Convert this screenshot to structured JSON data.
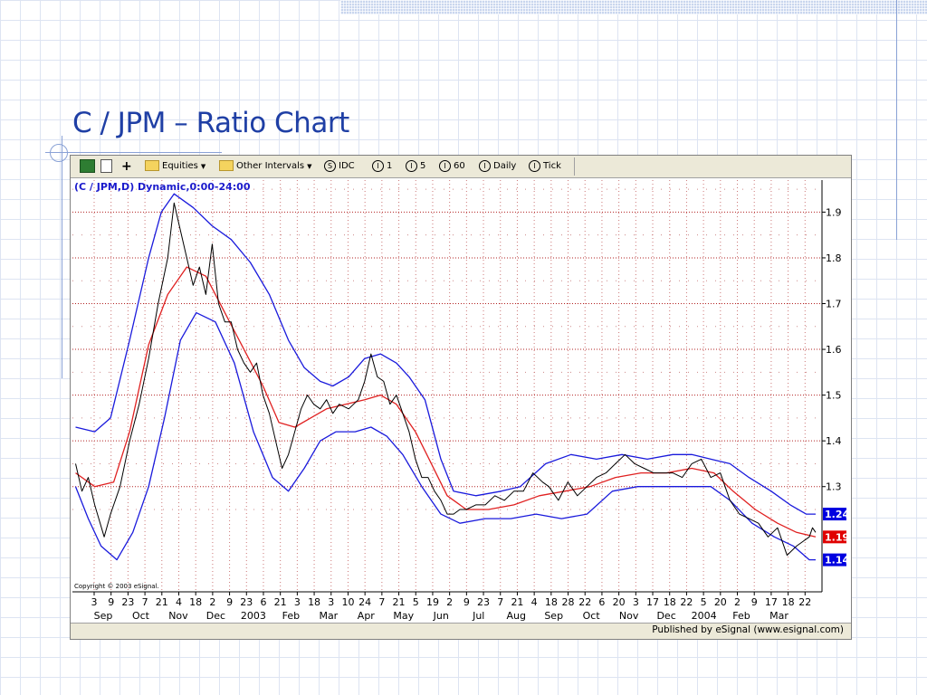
{
  "slide": {
    "title": "C / JPM – Ratio Chart"
  },
  "toolbar": {
    "items": [
      {
        "label": "",
        "icon": "grid-icon"
      },
      {
        "label": "",
        "icon": "document-icon"
      },
      {
        "label": "+",
        "icon": "plus-icon"
      },
      {
        "label": "Equities",
        "icon": "folder-icon",
        "dropdown": true
      },
      {
        "label": "Other Intervals",
        "icon": "folder-icon",
        "dropdown": true
      },
      {
        "label": "IDC",
        "icon": "s-circle-icon",
        "glyph": "S"
      },
      {
        "label": "1",
        "icon": "i-circle-icon",
        "glyph": "I"
      },
      {
        "label": "5",
        "icon": "i-circle-icon",
        "glyph": "I"
      },
      {
        "label": "60",
        "icon": "i-circle-icon",
        "glyph": "I"
      },
      {
        "label": "Daily",
        "icon": "i-circle-icon",
        "glyph": "I"
      },
      {
        "label": "Tick",
        "icon": "i-circle-icon",
        "glyph": "I"
      }
    ]
  },
  "footer": {
    "published": "Published by eSignal (www.esignal.com)"
  },
  "chart_data": {
    "type": "line",
    "title": "(C / JPM,D) Dynamic,0:00-24:00",
    "copyright": "Copyright © 2003 eSignal.",
    "ylim": [
      1.07,
      1.97
    ],
    "yticks": [
      1.3,
      1.4,
      1.5,
      1.6,
      1.7,
      1.8,
      1.9
    ],
    "grid": true,
    "x_day_labels": [
      "3",
      "9",
      "23",
      "7",
      "21",
      "4",
      "18",
      "2",
      "9",
      "23",
      "6",
      "21",
      "3",
      "18",
      "3",
      "10",
      "24",
      "7",
      "21",
      "5",
      "19",
      "2",
      "9",
      "23",
      "7",
      "21",
      "4",
      "18",
      "28",
      "22",
      "6",
      "20",
      "3",
      "17",
      "18",
      "22",
      "5",
      "20",
      "2",
      "9",
      "17",
      "18",
      "22"
    ],
    "x_month_labels": [
      "Sep",
      "Oct",
      "Nov",
      "Dec",
      "2003",
      "Feb",
      "Mar",
      "Apr",
      "May",
      "Jun",
      "Jul",
      "Aug",
      "Sep",
      "Oct",
      "Nov",
      "Dec",
      "2004",
      "Feb",
      "Mar"
    ],
    "last_values": {
      "upper": 1.24,
      "middle": 1.19,
      "lower": 1.14
    },
    "colors": {
      "price": "#000000",
      "upper": "#1a1adc",
      "middle": "#e02020",
      "lower": "#1a1adc",
      "grid": "#b22222",
      "upper_tag": "#0000e0",
      "middle_tag": "#e00000"
    },
    "x": [
      "Sep 2002",
      "Oct 2002",
      "Nov 2002",
      "Dec 2002",
      "Jan 2003",
      "Feb 2003",
      "Mar 2003",
      "Apr 2003",
      "May 2003",
      "Jun 2003",
      "Jul 2003",
      "Aug 2003",
      "Sep 2003",
      "Oct 2003",
      "Nov 2003",
      "Dec 2003",
      "Jan 2004",
      "Feb 2004",
      "Mar 2004"
    ],
    "series": [
      {
        "name": "",
        "role": "price",
        "values": [
          [
            0.0,
            1.35
          ],
          [
            0.1,
            1.29
          ],
          [
            0.2,
            1.32
          ],
          [
            0.3,
            1.26
          ],
          [
            0.45,
            1.19
          ],
          [
            0.55,
            1.24
          ],
          [
            0.7,
            1.3
          ],
          [
            0.85,
            1.4
          ],
          [
            1.0,
            1.48
          ],
          [
            1.15,
            1.58
          ],
          [
            1.3,
            1.7
          ],
          [
            1.45,
            1.8
          ],
          [
            1.55,
            1.92
          ],
          [
            1.65,
            1.86
          ],
          [
            1.75,
            1.8
          ],
          [
            1.85,
            1.74
          ],
          [
            1.95,
            1.78
          ],
          [
            2.05,
            1.72
          ],
          [
            2.15,
            1.83
          ],
          [
            2.25,
            1.7
          ],
          [
            2.35,
            1.66
          ],
          [
            2.45,
            1.66
          ],
          [
            2.55,
            1.6
          ],
          [
            2.65,
            1.57
          ],
          [
            2.75,
            1.55
          ],
          [
            2.85,
            1.57
          ],
          [
            2.95,
            1.5
          ],
          [
            3.05,
            1.46
          ],
          [
            3.15,
            1.4
          ],
          [
            3.25,
            1.34
          ],
          [
            3.35,
            1.37
          ],
          [
            3.45,
            1.42
          ],
          [
            3.55,
            1.47
          ],
          [
            3.65,
            1.5
          ],
          [
            3.75,
            1.48
          ],
          [
            3.85,
            1.47
          ],
          [
            3.95,
            1.49
          ],
          [
            4.05,
            1.46
          ],
          [
            4.15,
            1.48
          ],
          [
            4.3,
            1.47
          ],
          [
            4.45,
            1.49
          ],
          [
            4.55,
            1.53
          ],
          [
            4.65,
            1.59
          ],
          [
            4.75,
            1.54
          ],
          [
            4.85,
            1.53
          ],
          [
            4.95,
            1.48
          ],
          [
            5.05,
            1.5
          ],
          [
            5.15,
            1.46
          ],
          [
            5.25,
            1.42
          ],
          [
            5.35,
            1.36
          ],
          [
            5.45,
            1.32
          ],
          [
            5.55,
            1.32
          ],
          [
            5.65,
            1.29
          ],
          [
            5.75,
            1.27
          ],
          [
            5.85,
            1.24
          ],
          [
            5.95,
            1.24
          ],
          [
            6.05,
            1.25
          ],
          [
            6.15,
            1.25
          ],
          [
            6.3,
            1.26
          ],
          [
            6.45,
            1.26
          ],
          [
            6.6,
            1.28
          ],
          [
            6.75,
            1.27
          ],
          [
            6.9,
            1.29
          ],
          [
            7.05,
            1.29
          ],
          [
            7.2,
            1.33
          ],
          [
            7.35,
            1.31
          ],
          [
            7.45,
            1.3
          ],
          [
            7.6,
            1.27
          ],
          [
            7.75,
            1.31
          ],
          [
            7.9,
            1.28
          ],
          [
            8.05,
            1.3
          ],
          [
            8.2,
            1.32
          ],
          [
            8.35,
            1.33
          ],
          [
            8.5,
            1.35
          ],
          [
            8.65,
            1.37
          ],
          [
            8.8,
            1.35
          ],
          [
            8.95,
            1.34
          ],
          [
            9.1,
            1.33
          ],
          [
            9.25,
            1.33
          ],
          [
            9.4,
            1.33
          ],
          [
            9.55,
            1.32
          ],
          [
            9.7,
            1.35
          ],
          [
            9.85,
            1.36
          ],
          [
            10.0,
            1.32
          ],
          [
            10.15,
            1.33
          ],
          [
            10.3,
            1.27
          ],
          [
            10.45,
            1.24
          ],
          [
            10.6,
            1.23
          ],
          [
            10.75,
            1.22
          ],
          [
            10.9,
            1.19
          ],
          [
            11.05,
            1.21
          ],
          [
            11.2,
            1.15
          ],
          [
            11.35,
            1.17
          ],
          [
            11.45,
            1.18
          ],
          [
            11.55,
            1.19
          ],
          [
            11.6,
            1.21
          ],
          [
            11.65,
            1.2
          ]
        ]
      },
      {
        "name": "",
        "role": "upper",
        "values": [
          [
            0.0,
            1.43
          ],
          [
            0.3,
            1.42
          ],
          [
            0.55,
            1.45
          ],
          [
            0.85,
            1.62
          ],
          [
            1.15,
            1.8
          ],
          [
            1.35,
            1.9
          ],
          [
            1.55,
            1.94
          ],
          [
            1.85,
            1.91
          ],
          [
            2.15,
            1.87
          ],
          [
            2.45,
            1.84
          ],
          [
            2.75,
            1.79
          ],
          [
            3.05,
            1.72
          ],
          [
            3.35,
            1.62
          ],
          [
            3.6,
            1.56
          ],
          [
            3.85,
            1.53
          ],
          [
            4.05,
            1.52
          ],
          [
            4.3,
            1.54
          ],
          [
            4.55,
            1.58
          ],
          [
            4.8,
            1.59
          ],
          [
            5.05,
            1.57
          ],
          [
            5.25,
            1.54
          ],
          [
            5.5,
            1.49
          ],
          [
            5.75,
            1.36
          ],
          [
            5.95,
            1.29
          ],
          [
            6.3,
            1.28
          ],
          [
            6.7,
            1.29
          ],
          [
            7.0,
            1.3
          ],
          [
            7.4,
            1.35
          ],
          [
            7.8,
            1.37
          ],
          [
            8.2,
            1.36
          ],
          [
            8.6,
            1.37
          ],
          [
            9.0,
            1.36
          ],
          [
            9.4,
            1.37
          ],
          [
            9.7,
            1.37
          ],
          [
            10.0,
            1.36
          ],
          [
            10.3,
            1.35
          ],
          [
            10.6,
            1.32
          ],
          [
            10.95,
            1.29
          ],
          [
            11.25,
            1.26
          ],
          [
            11.5,
            1.24
          ],
          [
            11.65,
            1.24
          ]
        ]
      },
      {
        "name": "",
        "role": "middle",
        "values": [
          [
            0.0,
            1.33
          ],
          [
            0.3,
            1.3
          ],
          [
            0.6,
            1.31
          ],
          [
            0.85,
            1.42
          ],
          [
            1.15,
            1.61
          ],
          [
            1.45,
            1.72
          ],
          [
            1.75,
            1.78
          ],
          [
            2.05,
            1.76
          ],
          [
            2.35,
            1.68
          ],
          [
            2.65,
            1.6
          ],
          [
            2.95,
            1.52
          ],
          [
            3.2,
            1.44
          ],
          [
            3.45,
            1.43
          ],
          [
            3.7,
            1.45
          ],
          [
            3.95,
            1.47
          ],
          [
            4.25,
            1.48
          ],
          [
            4.55,
            1.49
          ],
          [
            4.8,
            1.5
          ],
          [
            5.05,
            1.48
          ],
          [
            5.35,
            1.42
          ],
          [
            5.6,
            1.35
          ],
          [
            5.85,
            1.28
          ],
          [
            6.15,
            1.25
          ],
          [
            6.5,
            1.25
          ],
          [
            6.9,
            1.26
          ],
          [
            7.3,
            1.28
          ],
          [
            7.7,
            1.29
          ],
          [
            8.1,
            1.3
          ],
          [
            8.5,
            1.32
          ],
          [
            8.9,
            1.33
          ],
          [
            9.3,
            1.33
          ],
          [
            9.7,
            1.34
          ],
          [
            10.05,
            1.33
          ],
          [
            10.35,
            1.29
          ],
          [
            10.7,
            1.25
          ],
          [
            11.05,
            1.22
          ],
          [
            11.35,
            1.2
          ],
          [
            11.65,
            1.19
          ]
        ]
      },
      {
        "name": "",
        "role": "lower",
        "values": [
          [
            0.0,
            1.3
          ],
          [
            0.2,
            1.23
          ],
          [
            0.4,
            1.17
          ],
          [
            0.65,
            1.14
          ],
          [
            0.9,
            1.2
          ],
          [
            1.15,
            1.3
          ],
          [
            1.4,
            1.45
          ],
          [
            1.65,
            1.62
          ],
          [
            1.9,
            1.68
          ],
          [
            2.2,
            1.66
          ],
          [
            2.5,
            1.57
          ],
          [
            2.8,
            1.42
          ],
          [
            3.1,
            1.32
          ],
          [
            3.35,
            1.29
          ],
          [
            3.6,
            1.34
          ],
          [
            3.85,
            1.4
          ],
          [
            4.1,
            1.42
          ],
          [
            4.4,
            1.42
          ],
          [
            4.65,
            1.43
          ],
          [
            4.9,
            1.41
          ],
          [
            5.15,
            1.37
          ],
          [
            5.45,
            1.3
          ],
          [
            5.75,
            1.24
          ],
          [
            6.05,
            1.22
          ],
          [
            6.45,
            1.23
          ],
          [
            6.85,
            1.23
          ],
          [
            7.25,
            1.24
          ],
          [
            7.65,
            1.23
          ],
          [
            8.05,
            1.24
          ],
          [
            8.45,
            1.29
          ],
          [
            8.85,
            1.3
          ],
          [
            9.25,
            1.3
          ],
          [
            9.65,
            1.3
          ],
          [
            10.0,
            1.3
          ],
          [
            10.3,
            1.27
          ],
          [
            10.65,
            1.22
          ],
          [
            11.0,
            1.19
          ],
          [
            11.3,
            1.17
          ],
          [
            11.55,
            1.14
          ],
          [
            11.65,
            1.14
          ]
        ]
      }
    ]
  }
}
